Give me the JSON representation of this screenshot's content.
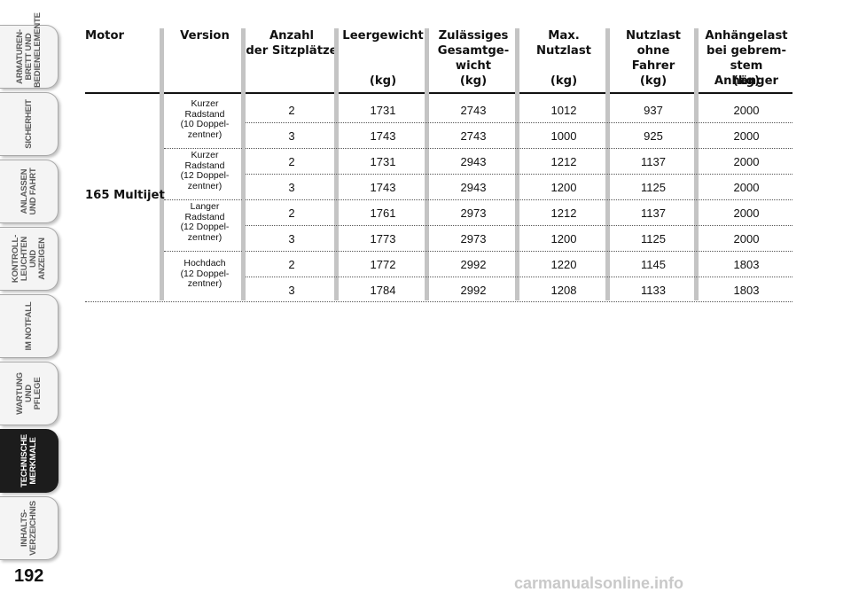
{
  "side_tabs": [
    {
      "label": "ARMATUREN-\nBRETT UND\nBEDIENELEMENTE",
      "active": false
    },
    {
      "label": "SICHERHEIT",
      "active": false
    },
    {
      "label": "ANLASSEN\nUND FAHRT",
      "active": false
    },
    {
      "label": "KONTROLL-\nLEUCHTEN UND\nANZEIGEN",
      "active": false
    },
    {
      "label": "IM NOTFALL",
      "active": false
    },
    {
      "label": "WARTUNG UND\nPFLEGE",
      "active": false
    },
    {
      "label": "TECHNISCHE\nMERKMALE",
      "active": true
    },
    {
      "label": "INHALTS-\nVERZEICHNIS",
      "active": false
    }
  ],
  "page_number": "192",
  "watermark": "carmanualsonline.info",
  "table": {
    "headers": {
      "motor": "Motor",
      "version": "Version",
      "seats": "Anzahl\nder Sitzplätze",
      "empty_weight": "Leergewicht",
      "gross_weight": "Zulässiges\nGesamtge-\nwicht",
      "max_payload": "Max.\nNutzlast",
      "payload_no_driver": "Nutzlast ohne\nFahrer",
      "trailer_load": "Anhängelast\nbei gebrem-\nstem Anhänger"
    },
    "unit": "(kg)",
    "motor": "165 Multijet",
    "versions": [
      "Kurzer\nRadstand\n(10 Doppel-\nzentner)",
      "Kurzer\nRadstand\n(12 Doppel-\nzentner)",
      "Langer\nRadstand\n(12 Doppel-\nzentner)",
      "Hochdach\n(12 Doppel-\nzentner)"
    ],
    "rows": [
      {
        "seats": "2",
        "empty": "1731",
        "gross": "2743",
        "max_payload": "1012",
        "payload_no_driver": "937",
        "trailer": "2000"
      },
      {
        "seats": "3",
        "empty": "1743",
        "gross": "2743",
        "max_payload": "1000",
        "payload_no_driver": "925",
        "trailer": "2000"
      },
      {
        "seats": "2",
        "empty": "1731",
        "gross": "2943",
        "max_payload": "1212",
        "payload_no_driver": "1137",
        "trailer": "2000"
      },
      {
        "seats": "3",
        "empty": "1743",
        "gross": "2943",
        "max_payload": "1200",
        "payload_no_driver": "1125",
        "trailer": "2000"
      },
      {
        "seats": "2",
        "empty": "1761",
        "gross": "2973",
        "max_payload": "1212",
        "payload_no_driver": "1137",
        "trailer": "2000"
      },
      {
        "seats": "3",
        "empty": "1773",
        "gross": "2973",
        "max_payload": "1200",
        "payload_no_driver": "1125",
        "trailer": "2000"
      },
      {
        "seats": "2",
        "empty": "1772",
        "gross": "2992",
        "max_payload": "1220",
        "payload_no_driver": "1145",
        "trailer": "1803"
      },
      {
        "seats": "3",
        "empty": "1784",
        "gross": "2992",
        "max_payload": "1208",
        "payload_no_driver": "1133",
        "trailer": "1803"
      }
    ]
  }
}
